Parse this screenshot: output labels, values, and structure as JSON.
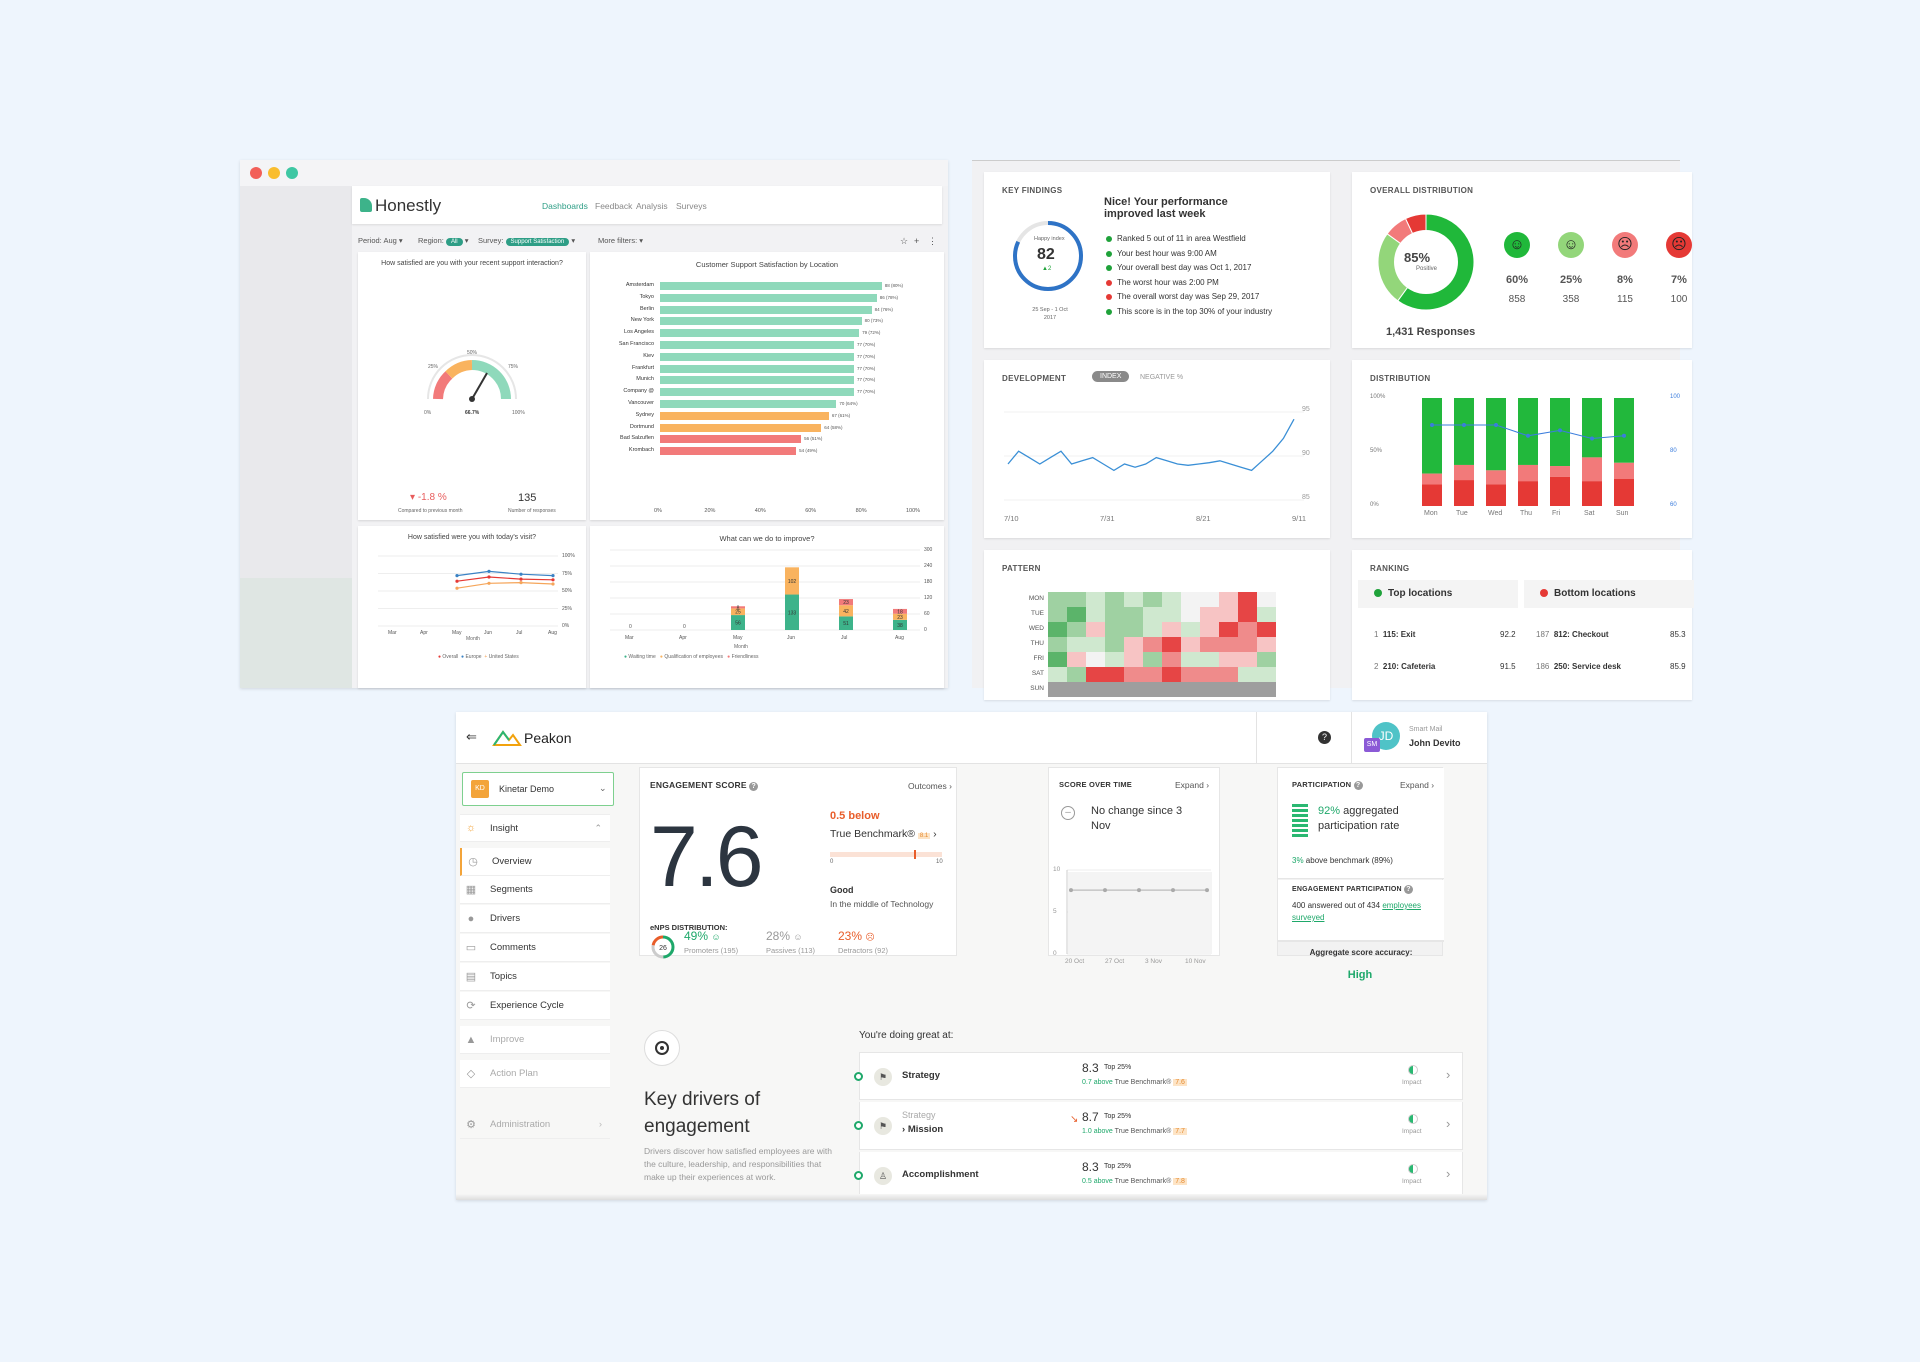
{
  "honestly": {
    "logo": "Honestly",
    "nav": [
      "Dashboards",
      "Feedback",
      "Analysis",
      "Surveys"
    ],
    "filters": {
      "period_label": "Period:",
      "period_value": "Aug",
      "region_label": "Region:",
      "region_value": "All",
      "survey_label": "Survey:",
      "survey_value": "Support Satisfaction",
      "more": "More filters:"
    },
    "gauge_card": {
      "title": "How satisfied are you with your recent support interaction?",
      "ticks": [
        "0%",
        "25%",
        "50%",
        "75%",
        "100%"
      ],
      "value_label": "66.7%",
      "value": 66.7,
      "change": "-1.8 %",
      "change_caption": "Compared to previous month",
      "responses": "135",
      "responses_caption": "Number of responses"
    },
    "location_card": {
      "title": "Customer Support Satisfaction by Location",
      "x_ticks": [
        "0%",
        "20%",
        "40%",
        "60%",
        "80%",
        "100%"
      ]
    },
    "visit_card": {
      "title": "How satisfied were you with today's visit?",
      "months": [
        "Mar",
        "Apr",
        "May",
        "Jun",
        "Jul",
        "Aug"
      ],
      "x_label": "Month",
      "y_ticks": [
        "100%",
        "75%",
        "50%",
        "25%",
        "0%"
      ],
      "legend": [
        "Overall",
        "Europe",
        "United States"
      ]
    },
    "improve_card": {
      "title": "What can we do to improve?",
      "months": [
        "Mar",
        "Apr",
        "May",
        "Jun",
        "Jul",
        "Aug"
      ],
      "x_label": "Month",
      "y_ticks": [
        "300",
        "240",
        "180",
        "120",
        "60",
        "0"
      ],
      "legend": [
        "Waiting time",
        "Qualification of employees",
        "Friendliness"
      ]
    },
    "colors": {
      "accent": "#2e9e86",
      "green_bar": "#8fd9bb",
      "orange_bar": "#f9b35f",
      "red_bar": "#f27a7a"
    }
  },
  "dashboard": {
    "key_findings": {
      "label": "KEY FINDINGS",
      "happy_index_label": "Happy index",
      "happy_index": "82",
      "delta": "▲2",
      "period": "25 Sep - 1 Oct 2017",
      "headline": "Nice! Your performance improved last week",
      "items": [
        {
          "text": "Ranked 5 out of 11 in area Westfield",
          "color": "#1fa23a"
        },
        {
          "text": "Your best hour was 9:00 AM",
          "color": "#1fa23a"
        },
        {
          "text": "Your overall best day was Oct 1, 2017",
          "color": "#1fa23a"
        },
        {
          "text": "The worst hour was 2:00 PM",
          "color": "#e53935"
        },
        {
          "text": "The overall worst day was Sep 29, 2017",
          "color": "#e53935"
        },
        {
          "text": "This score is in the top 30% of your industry",
          "color": "#1fa23a"
        }
      ]
    },
    "overall_distribution": {
      "label": "OVERALL DISTRIBUTION",
      "center_pct": "85%",
      "center_caption": "Positive",
      "responses": "1,431 Responses",
      "buckets": [
        {
          "pct": "60%",
          "count": "858",
          "color": "#20b83a",
          "face": "☺"
        },
        {
          "pct": "25%",
          "count": "358",
          "color": "#93d67a",
          "face": "☺"
        },
        {
          "pct": "8%",
          "count": "115",
          "color": "#f27a7a",
          "face": "☹"
        },
        {
          "pct": "7%",
          "count": "100",
          "color": "#e53935",
          "face": "☹"
        }
      ]
    },
    "development": {
      "label": "DEVELOPMENT",
      "tabs": [
        "INDEX",
        "NEGATIVE %"
      ],
      "x_ticks": [
        "7/10",
        "7/31",
        "8/21",
        "9/11"
      ],
      "y_ticks": [
        "95",
        "90",
        "85"
      ]
    },
    "distribution": {
      "label": "DISTRIBUTION",
      "days": [
        "Mon",
        "Tue",
        "Wed",
        "Thu",
        "Fri",
        "Sat",
        "Sun"
      ],
      "left_ticks": [
        "100%",
        "50%",
        "0%"
      ],
      "right_ticks": [
        "100",
        "80",
        "60"
      ]
    },
    "pattern": {
      "label": "PATTERN",
      "days": [
        "MON",
        "TUE",
        "WED",
        "THU",
        "FRI",
        "SAT",
        "SUN"
      ]
    },
    "ranking": {
      "label": "RANKING",
      "top_label": "Top locations",
      "bottom_label": "Bottom locations",
      "top": [
        {
          "rank": "1",
          "name": "115: Exit",
          "score": "92.2"
        },
        {
          "rank": "2",
          "name": "210: Cafeteria",
          "score": "91.5"
        }
      ],
      "bottom": [
        {
          "rank": "187",
          "name": "812: Checkout",
          "score": "85.3"
        },
        {
          "rank": "186",
          "name": "250: Service desk",
          "score": "85.9"
        }
      ]
    }
  },
  "peakon": {
    "logo": "Peakon",
    "help": "?",
    "user": {
      "company": "Smart Mail",
      "name": "John Devito",
      "initials": "JD",
      "badge": "SM"
    },
    "org": {
      "initials": "KD",
      "name": "Kinetar Demo"
    },
    "sidebar": [
      {
        "label": "Insight",
        "icon": "☼"
      },
      {
        "label": "Overview",
        "icon": "◷"
      },
      {
        "label": "Segments",
        "icon": "▦"
      },
      {
        "label": "Drivers",
        "icon": "●"
      },
      {
        "label": "Comments",
        "icon": "▭"
      },
      {
        "label": "Topics",
        "icon": "▤"
      },
      {
        "label": "Experience Cycle",
        "icon": "⟳"
      },
      {
        "label": "Improve",
        "icon": "▲"
      },
      {
        "label": "Action Plan",
        "icon": "◇"
      },
      {
        "label": "Administration",
        "icon": "⚙"
      }
    ],
    "engagement": {
      "label": "ENGAGEMENT SCORE",
      "outcomes": "Outcomes",
      "score": "7.6",
      "below": "0.5 below",
      "benchmark_label": "True Benchmark®",
      "benchmark_badge": "8.1",
      "scale_min": "0",
      "scale_max": "10",
      "verdict": "Good",
      "verdict_caption": "In the middle of Technology",
      "enps_label": "eNPS DISTRIBUTION:",
      "enps": "26",
      "promoters_pct": "49%",
      "promoters": "Promoters (195)",
      "passives_pct": "28%",
      "passives": "Passives (113)",
      "detractors_pct": "23%",
      "detractors": "Detractors (92)"
    },
    "score_over_time": {
      "label": "SCORE OVER TIME",
      "expand": "Expand",
      "message": "No change since 3 Nov",
      "y_ticks": [
        "10",
        "5",
        "0"
      ],
      "x_ticks": [
        "20 Oct",
        "27 Oct",
        "3 Nov",
        "10 Nov"
      ]
    },
    "participation": {
      "label": "PARTICIPATION",
      "expand": "Expand",
      "pct": "92%",
      "text": "aggregated participation rate",
      "above": "3%",
      "above_text": "above benchmark (89%)",
      "eng_label": "ENGAGEMENT PARTICIPATION",
      "answered": "400 answered out of 434",
      "answered_link": "employees surveyed",
      "accuracy_label": "Aggregate score accuracy:",
      "accuracy": "High"
    },
    "drivers_intro": {
      "title": "Key drivers of engagement",
      "body": "Drivers discover how satisfied employees are with the culture, leadership, and responsibilities that make up their experiences at work.",
      "great_at": "You're doing great at:"
    },
    "drivers": [
      {
        "parent": "",
        "name": "Strategy",
        "score": "8.3",
        "rank": "Top 25%",
        "delta": "0.7",
        "above": "above",
        "bench": "True Benchmark®",
        "bench_val": "7.6",
        "impact": "Impact"
      },
      {
        "parent": "Strategy",
        "name": "Mission",
        "score": "8.7",
        "rank": "Top 25%",
        "delta": "1.0",
        "above": "above",
        "bench": "True Benchmark®",
        "bench_val": "7.7",
        "impact": "Impact"
      },
      {
        "parent": "",
        "name": "Accomplishment",
        "score": "8.3",
        "rank": "Top 25%",
        "delta": "0.5",
        "above": "above",
        "bench": "True Benchmark®",
        "bench_val": "7.8",
        "impact": "Impact"
      }
    ]
  }
}
